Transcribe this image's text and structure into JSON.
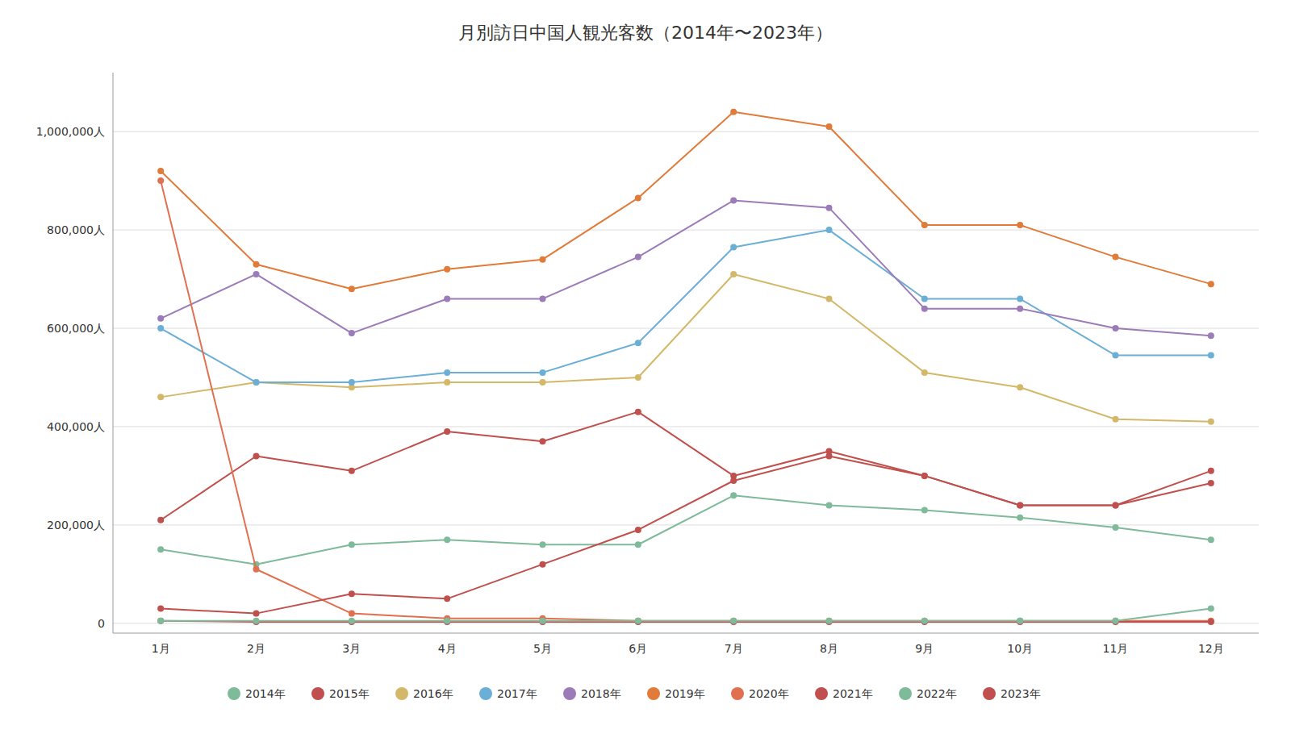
{
  "chart_data": {
    "type": "line",
    "title": "月別訪日中国人観光客数（2014年〜2023年）",
    "categories": [
      "1月",
      "2月",
      "3月",
      "4月",
      "5月",
      "6月",
      "7月",
      "8月",
      "9月",
      "10月",
      "11月",
      "12月"
    ],
    "series": [
      {
        "name": "2014年",
        "color": "#7fba9a",
        "values": [
          150000,
          120000,
          160000,
          170000,
          160000,
          160000,
          260000,
          240000,
          230000,
          215000,
          195000,
          170000
        ]
      },
      {
        "name": "2015年",
        "color": "#c0504d",
        "values": [
          210000,
          340000,
          310000,
          390000,
          370000,
          430000,
          300000,
          350000,
          300000,
          240000,
          240000,
          310000
        ]
      },
      {
        "name": "2016年",
        "color": "#d4b86a",
        "values": [
          460000,
          490000,
          480000,
          490000,
          490000,
          500000,
          710000,
          660000,
          510000,
          480000,
          415000,
          410000
        ]
      },
      {
        "name": "2017年",
        "color": "#6baed6",
        "values": [
          600000,
          490000,
          490000,
          510000,
          510000,
          570000,
          765000,
          800000,
          660000,
          660000,
          545000,
          545000
        ]
      },
      {
        "name": "2018年",
        "color": "#9b7bb8",
        "values": [
          620000,
          710000,
          590000,
          660000,
          660000,
          745000,
          860000,
          845000,
          640000,
          640000,
          600000,
          585000
        ]
      },
      {
        "name": "2019年",
        "color": "#e07b39",
        "values": [
          920000,
          730000,
          680000,
          720000,
          740000,
          865000,
          1040000,
          1010000,
          810000,
          810000,
          745000,
          690000
        ]
      },
      {
        "name": "2020年",
        "color": "#e07050",
        "values": [
          900000,
          110000,
          20000,
          10000,
          10000,
          5000,
          5000,
          5000,
          5000,
          5000,
          5000,
          5000
        ]
      },
      {
        "name": "2021年",
        "color": "#c0504d",
        "values": [
          5000,
          3000,
          3000,
          3000,
          3000,
          3000,
          3000,
          3000,
          3000,
          3000,
          3000,
          3000
        ]
      },
      {
        "name": "2022年",
        "color": "#7fba9a",
        "values": [
          5000,
          5000,
          5000,
          5000,
          5000,
          5000,
          5000,
          5000,
          5000,
          5000,
          5000,
          30000
        ]
      },
      {
        "name": "2023年",
        "color": "#c0504d",
        "values": [
          30000,
          20000,
          60000,
          50000,
          120000,
          190000,
          290000,
          340000,
          300000,
          240000,
          240000,
          285000
        ]
      }
    ],
    "ylim": [
      -20000,
      1120000
    ],
    "yticks": [
      0,
      {
        "value": 200000,
        "label": "200,000人"
      },
      {
        "value": 400000,
        "label": "400,000人"
      },
      {
        "value": 600000,
        "label": "600,000人"
      },
      {
        "value": 800000,
        "label": "800,000人"
      },
      {
        "value": 1000000,
        "label": "1,000,000人"
      }
    ],
    "grid": true,
    "legend": "bottom",
    "marker": "circle"
  }
}
